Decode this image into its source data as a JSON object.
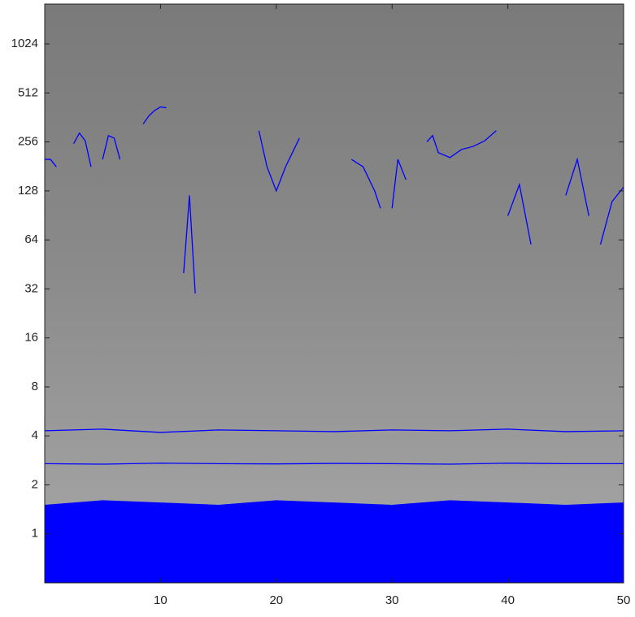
{
  "chart_data": {
    "type": "line",
    "yscale": "log",
    "xlim": [
      0,
      50
    ],
    "ylim": [
      0.5,
      1800
    ],
    "xticks": [
      10,
      20,
      30,
      40,
      50
    ],
    "yticks": [
      1,
      2,
      4,
      8,
      16,
      32,
      64,
      128,
      256,
      512,
      1024
    ],
    "series": [
      {
        "color": "#0000ff",
        "fill": true,
        "x": [
          0,
          5,
          10,
          15,
          20,
          25,
          30,
          35,
          40,
          45,
          50
        ],
        "values": [
          1.5,
          1.6,
          1.55,
          1.5,
          1.6,
          1.55,
          1.5,
          1.6,
          1.55,
          1.5,
          1.55
        ]
      },
      {
        "color": "#0000ff",
        "x": [
          0,
          5,
          10,
          15,
          20,
          25,
          30,
          35,
          40,
          45,
          50
        ],
        "values": [
          2.7,
          2.68,
          2.72,
          2.7,
          2.69,
          2.71,
          2.7,
          2.68,
          2.72,
          2.7,
          2.7
        ]
      },
      {
        "color": "#0000ff",
        "x": [
          0,
          5,
          10,
          15,
          20,
          25,
          30,
          35,
          40,
          45,
          50
        ],
        "values": [
          4.3,
          4.4,
          4.2,
          4.35,
          4.3,
          4.25,
          4.35,
          4.3,
          4.4,
          4.25,
          4.3
        ]
      },
      {
        "color": "#0000ff",
        "x": [
          8.5,
          9,
          9.5,
          10,
          10.5
        ],
        "values": [
          330,
          370,
          400,
          420,
          415
        ]
      },
      {
        "color": "#0000ff",
        "x": [
          33,
          33.5,
          34,
          35,
          36,
          37,
          38,
          39
        ],
        "values": [
          256,
          280,
          220,
          205,
          230,
          240,
          260,
          300
        ]
      },
      {
        "color": "#0000ff",
        "x": [
          18.5,
          19.2,
          20,
          20.8,
          22
        ],
        "values": [
          300,
          180,
          128,
          180,
          270
        ]
      },
      {
        "color": "#0000ff",
        "x": [
          0,
          0.5,
          1
        ],
        "values": [
          200,
          200,
          180
        ]
      },
      {
        "color": "#0000ff",
        "x": [
          26.5,
          27.5,
          28.5,
          29
        ],
        "values": [
          200,
          180,
          128,
          100
        ]
      },
      {
        "color": "#0000ff",
        "x": [
          2.5,
          3,
          3.5,
          4
        ],
        "values": [
          250,
          290,
          260,
          180
        ]
      },
      {
        "color": "#0000ff",
        "x": [
          5,
          5.5,
          6,
          6.5
        ],
        "values": [
          200,
          280,
          270,
          200
        ]
      },
      {
        "color": "#0000ff",
        "x": [
          12,
          12.5,
          13
        ],
        "values": [
          40,
          120,
          30
        ]
      },
      {
        "color": "#0000ff",
        "x": [
          40,
          41,
          42
        ],
        "values": [
          90,
          140,
          60
        ]
      },
      {
        "color": "#0000ff",
        "x": [
          48,
          49,
          50
        ],
        "values": [
          60,
          110,
          135
        ]
      },
      {
        "color": "#0000ff",
        "x": [
          30,
          30.5,
          31.2
        ],
        "values": [
          100,
          200,
          150
        ]
      },
      {
        "color": "#0000ff",
        "x": [
          45,
          46,
          47
        ],
        "values": [
          120,
          200,
          90
        ]
      }
    ]
  }
}
